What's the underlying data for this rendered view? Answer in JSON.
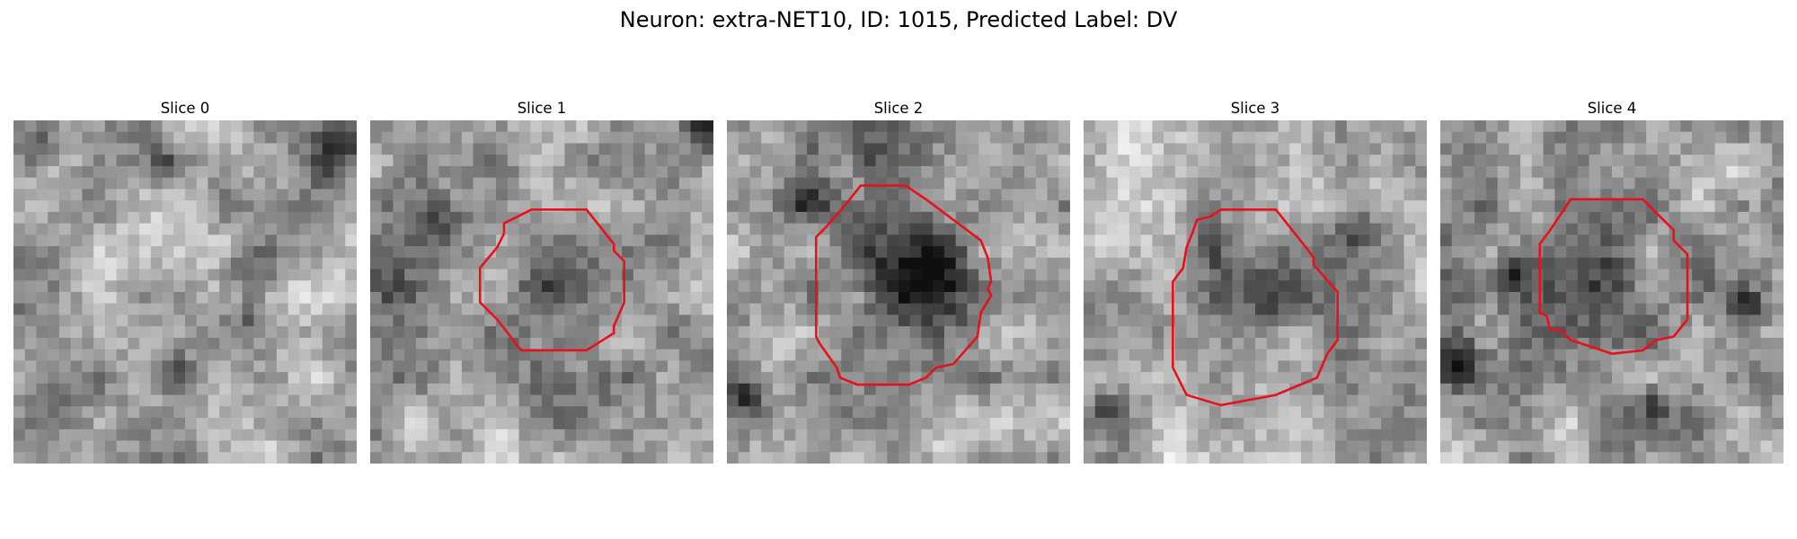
{
  "figure": {
    "title": "Neuron: extra-NET10, ID: 1015, Predicted Label: DV"
  },
  "colors": {
    "contour": "#e8101a",
    "colormap": "gray"
  },
  "slices": [
    {
      "label": "Slice 0",
      "seed": 11,
      "mean": 168,
      "dark_spots": [
        [
          0.93,
          0.08,
          0.1,
          110
        ],
        [
          0.43,
          0.13,
          0.05,
          90
        ],
        [
          0.08,
          0.08,
          0.06,
          60
        ],
        [
          0.67,
          0.44,
          0.07,
          90
        ],
        [
          0.47,
          0.73,
          0.06,
          80
        ],
        [
          0.69,
          0.58,
          0.07,
          70
        ]
      ],
      "contour": []
    },
    {
      "label": "Slice 1",
      "seed": 23,
      "mean": 160,
      "dark_spots": [
        [
          0.54,
          0.46,
          0.2,
          55
        ],
        [
          0.97,
          0.03,
          0.06,
          110
        ],
        [
          0.22,
          0.3,
          0.06,
          60
        ],
        [
          0.05,
          0.48,
          0.06,
          55
        ]
      ],
      "contour": [
        [
          0.47,
          0.26
        ],
        [
          0.63,
          0.26
        ],
        [
          0.71,
          0.36
        ],
        [
          0.71,
          0.38
        ],
        [
          0.74,
          0.41
        ],
        [
          0.74,
          0.53
        ],
        [
          0.71,
          0.6
        ],
        [
          0.71,
          0.62
        ],
        [
          0.63,
          0.67
        ],
        [
          0.44,
          0.67
        ],
        [
          0.37,
          0.58
        ],
        [
          0.32,
          0.53
        ],
        [
          0.32,
          0.43
        ],
        [
          0.37,
          0.37
        ],
        [
          0.39,
          0.33
        ],
        [
          0.39,
          0.3
        ]
      ]
    },
    {
      "label": "Slice 2",
      "seed": 37,
      "mean": 158,
      "dark_spots": [
        [
          0.53,
          0.45,
          0.14,
          100
        ],
        [
          0.5,
          0.4,
          0.24,
          40
        ],
        [
          0.06,
          0.8,
          0.06,
          120
        ],
        [
          0.23,
          0.24,
          0.06,
          70
        ],
        [
          0.4,
          0.1,
          0.05,
          80
        ],
        [
          0.72,
          0.6,
          0.05,
          60
        ]
      ],
      "contour": [
        [
          0.39,
          0.19
        ],
        [
          0.52,
          0.19
        ],
        [
          0.58,
          0.23
        ],
        [
          0.62,
          0.26
        ],
        [
          0.74,
          0.35
        ],
        [
          0.76,
          0.4
        ],
        [
          0.77,
          0.47
        ],
        [
          0.76,
          0.49
        ],
        [
          0.77,
          0.51
        ],
        [
          0.74,
          0.56
        ],
        [
          0.73,
          0.63
        ],
        [
          0.66,
          0.71
        ],
        [
          0.61,
          0.72
        ],
        [
          0.58,
          0.75
        ],
        [
          0.53,
          0.77
        ],
        [
          0.38,
          0.77
        ],
        [
          0.33,
          0.75
        ],
        [
          0.32,
          0.72
        ],
        [
          0.27,
          0.65
        ],
        [
          0.26,
          0.63
        ],
        [
          0.26,
          0.34
        ],
        [
          0.29,
          0.31
        ],
        [
          0.35,
          0.24
        ]
      ]
    },
    {
      "label": "Slice 3",
      "seed": 51,
      "mean": 170,
      "dark_spots": [
        [
          0.56,
          0.5,
          0.13,
          80
        ],
        [
          0.78,
          0.3,
          0.08,
          100
        ],
        [
          0.38,
          0.37,
          0.05,
          60
        ],
        [
          0.06,
          0.85,
          0.05,
          70
        ],
        [
          0.5,
          0.45,
          0.22,
          30
        ]
      ],
      "contour": [
        [
          0.4,
          0.26
        ],
        [
          0.56,
          0.26
        ],
        [
          0.64,
          0.36
        ],
        [
          0.67,
          0.4
        ],
        [
          0.67,
          0.42
        ],
        [
          0.74,
          0.5
        ],
        [
          0.74,
          0.64
        ],
        [
          0.71,
          0.68
        ],
        [
          0.68,
          0.75
        ],
        [
          0.56,
          0.8
        ],
        [
          0.4,
          0.83
        ],
        [
          0.3,
          0.8
        ],
        [
          0.26,
          0.72
        ],
        [
          0.26,
          0.47
        ],
        [
          0.29,
          0.43
        ],
        [
          0.3,
          0.37
        ],
        [
          0.32,
          0.32
        ],
        [
          0.33,
          0.29
        ],
        [
          0.37,
          0.28
        ]
      ]
    },
    {
      "label": "Slice 4",
      "seed": 67,
      "mean": 160,
      "dark_spots": [
        [
          0.43,
          0.45,
          0.17,
          80
        ],
        [
          0.22,
          0.44,
          0.06,
          80
        ],
        [
          0.05,
          0.7,
          0.07,
          110
        ],
        [
          0.9,
          0.54,
          0.05,
          90
        ],
        [
          0.62,
          0.83,
          0.05,
          70
        ],
        [
          0.85,
          0.25,
          0.05,
          80
        ]
      ],
      "contour": [
        [
          0.38,
          0.23
        ],
        [
          0.59,
          0.23
        ],
        [
          0.65,
          0.29
        ],
        [
          0.68,
          0.32
        ],
        [
          0.68,
          0.35
        ],
        [
          0.72,
          0.39
        ],
        [
          0.72,
          0.58
        ],
        [
          0.68,
          0.63
        ],
        [
          0.63,
          0.64
        ],
        [
          0.59,
          0.67
        ],
        [
          0.5,
          0.68
        ],
        [
          0.38,
          0.64
        ],
        [
          0.35,
          0.61
        ],
        [
          0.32,
          0.61
        ],
        [
          0.31,
          0.57
        ],
        [
          0.29,
          0.56
        ],
        [
          0.29,
          0.36
        ],
        [
          0.32,
          0.32
        ]
      ]
    }
  ]
}
